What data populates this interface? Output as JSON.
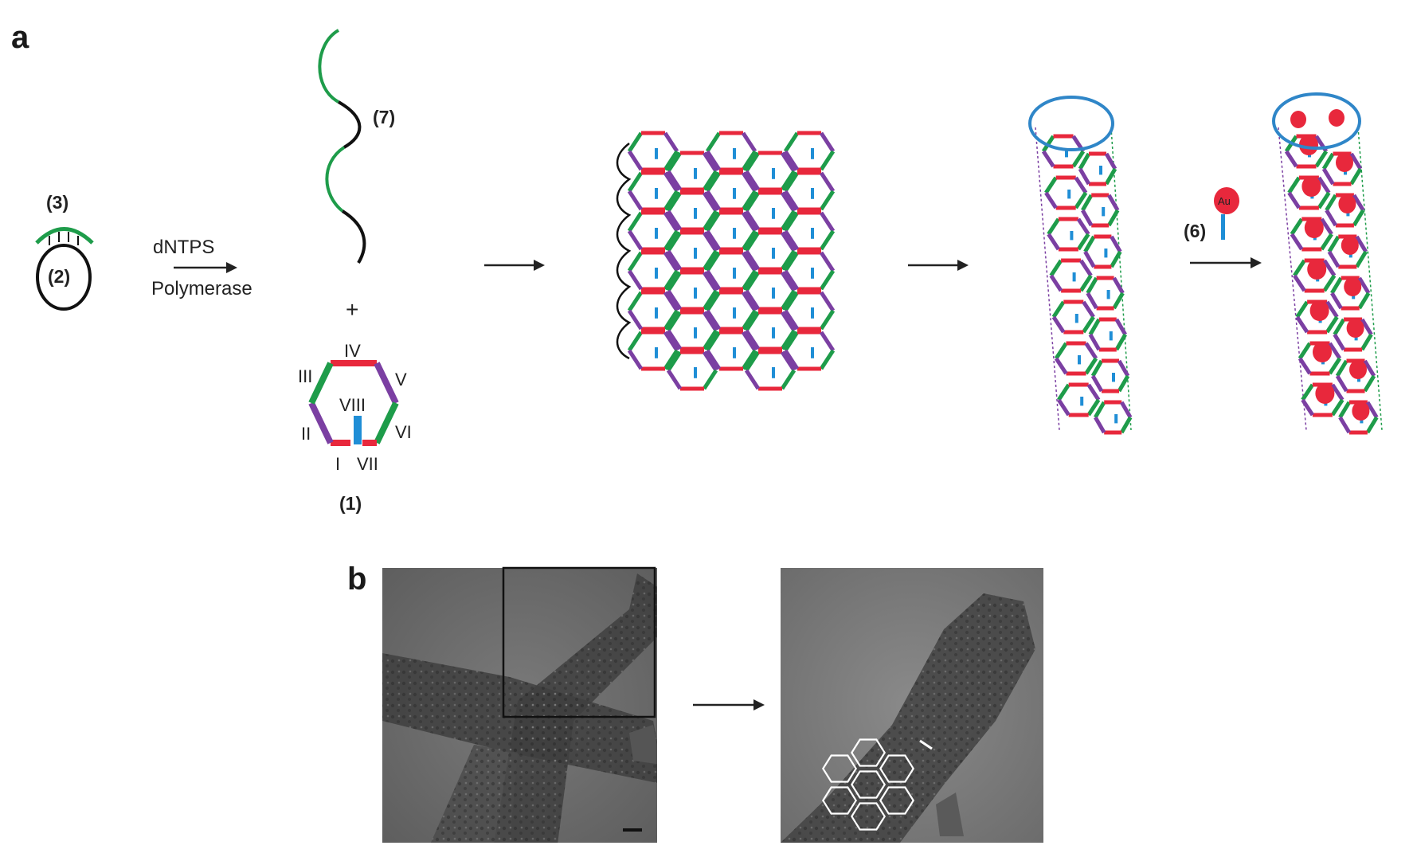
{
  "panels": {
    "a": "a",
    "b": "b"
  },
  "labels": {
    "primer": "(3)",
    "circle": "(2)",
    "strand": "(7)",
    "tile": "(1)",
    "gold_step": "(6)",
    "plus": "+",
    "gold_text": "Au"
  },
  "reaction": {
    "line1": "dNTPS",
    "line2": "Polymerase"
  },
  "tile_arms": {
    "I": "I",
    "II": "II",
    "III": "III",
    "IV": "IV",
    "V": "V",
    "VI": "VI",
    "VII": "VII",
    "VIII": "VIII"
  },
  "colors": {
    "green": "#1e9c4a",
    "red": "#e8283c",
    "purple": "#7b3fa2",
    "blue": "#1f8ed6",
    "ring": "#2f86c8",
    "gold": "#e8283c",
    "strand_black": "#111111",
    "em_bg": "#6f6f6f"
  },
  "icons": [
    "arrow-right-icon",
    "hexagon-tile-icon",
    "dna-lattice-icon",
    "nanotube-icon",
    "gold-nanoparticle-icon",
    "scale-bar-icon"
  ]
}
